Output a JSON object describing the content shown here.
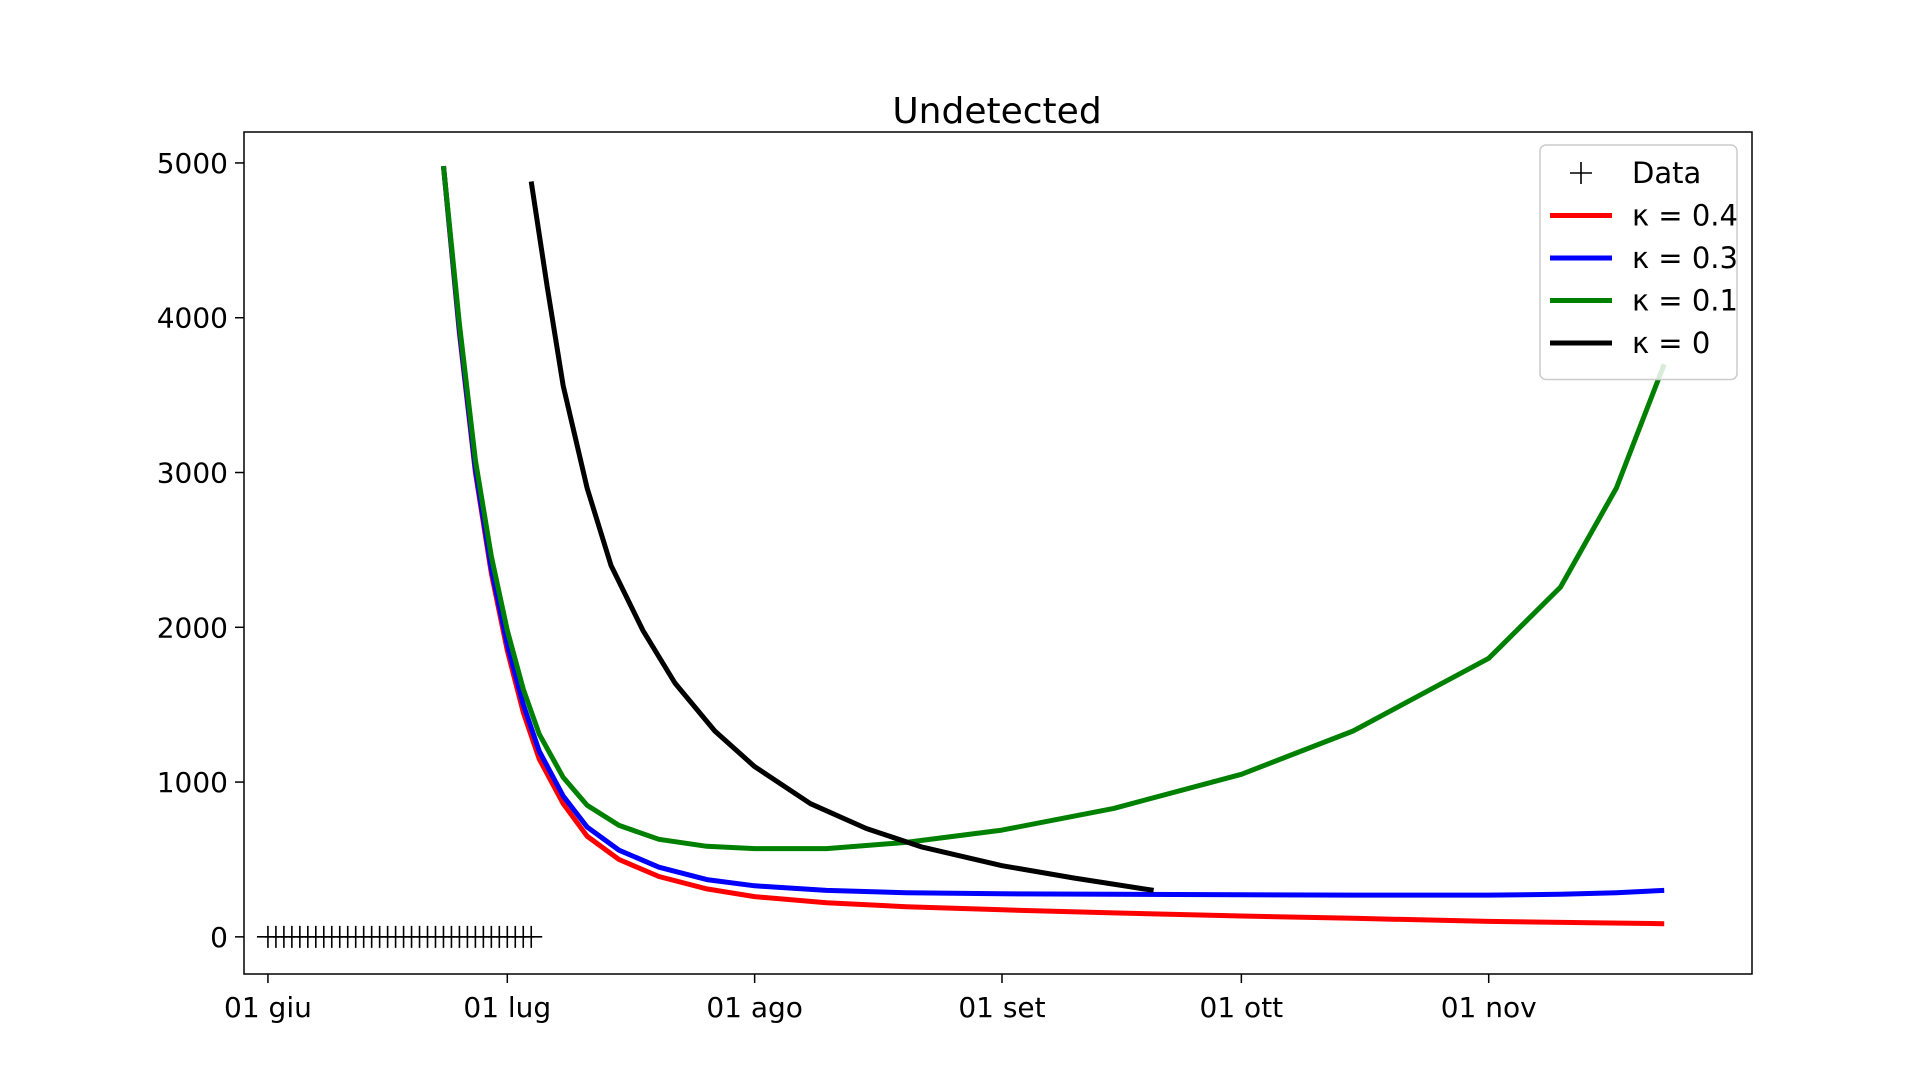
{
  "chart_data": {
    "type": "line",
    "title": "Undetected",
    "xlabel": "",
    "ylabel": "",
    "x_axis": {
      "type": "date",
      "range": [
        "2020-05-29",
        "2020-12-04"
      ],
      "ticks": [
        {
          "date": "2020-06-01",
          "label": "01 giu"
        },
        {
          "date": "2020-07-01",
          "label": "01 lug"
        },
        {
          "date": "2020-08-01",
          "label": "01 ago"
        },
        {
          "date": "2020-09-01",
          "label": "01 set"
        },
        {
          "date": "2020-10-01",
          "label": "01 ott"
        },
        {
          "date": "2020-11-01",
          "label": "01 nov"
        }
      ]
    },
    "y_axis": {
      "range": [
        -240,
        5200
      ],
      "ticks": [
        {
          "value": 0,
          "label": "0"
        },
        {
          "value": 1000,
          "label": "1000"
        },
        {
          "value": 2000,
          "label": "2000"
        },
        {
          "value": 3000,
          "label": "3000"
        },
        {
          "value": 4000,
          "label": "4000"
        },
        {
          "value": 5000,
          "label": "5000"
        }
      ]
    },
    "grid": false,
    "legend": {
      "position": "top-right",
      "entries": [
        {
          "label": "Data",
          "series": "data"
        },
        {
          "label": "κ = 0.4",
          "series": "kappa-0.4"
        },
        {
          "label": "κ = 0.3",
          "series": "kappa-0.3"
        },
        {
          "label": "κ = 0.1",
          "series": "kappa-0.1"
        },
        {
          "label": "κ = 0",
          "series": "kappa-0"
        }
      ]
    },
    "series": [
      {
        "id": "data",
        "name": "Data",
        "style": "marker-plus",
        "color": "#000000",
        "points": [
          {
            "x": "2020-06-01",
            "y": 0
          },
          {
            "x": "2020-06-02",
            "y": 0
          },
          {
            "x": "2020-06-03",
            "y": 0
          },
          {
            "x": "2020-06-04",
            "y": 0
          },
          {
            "x": "2020-06-05",
            "y": 0
          },
          {
            "x": "2020-06-06",
            "y": 0
          },
          {
            "x": "2020-06-07",
            "y": 0
          },
          {
            "x": "2020-06-08",
            "y": 0
          },
          {
            "x": "2020-06-09",
            "y": 0
          },
          {
            "x": "2020-06-10",
            "y": 0
          },
          {
            "x": "2020-06-11",
            "y": 0
          },
          {
            "x": "2020-06-12",
            "y": 0
          },
          {
            "x": "2020-06-13",
            "y": 0
          },
          {
            "x": "2020-06-14",
            "y": 0
          },
          {
            "x": "2020-06-15",
            "y": 0
          },
          {
            "x": "2020-06-16",
            "y": 0
          },
          {
            "x": "2020-06-17",
            "y": 0
          },
          {
            "x": "2020-06-18",
            "y": 0
          },
          {
            "x": "2020-06-19",
            "y": 0
          },
          {
            "x": "2020-06-20",
            "y": 0
          },
          {
            "x": "2020-06-21",
            "y": 0
          },
          {
            "x": "2020-06-22",
            "y": 0
          },
          {
            "x": "2020-06-23",
            "y": 0
          },
          {
            "x": "2020-06-24",
            "y": 0
          },
          {
            "x": "2020-06-25",
            "y": 0
          },
          {
            "x": "2020-06-26",
            "y": 0
          },
          {
            "x": "2020-06-27",
            "y": 0
          },
          {
            "x": "2020-06-28",
            "y": 0
          },
          {
            "x": "2020-06-29",
            "y": 0
          },
          {
            "x": "2020-06-30",
            "y": 0
          },
          {
            "x": "2020-07-01",
            "y": 0
          },
          {
            "x": "2020-07-02",
            "y": 0
          },
          {
            "x": "2020-07-03",
            "y": 0
          },
          {
            "x": "2020-07-04",
            "y": 0
          }
        ]
      },
      {
        "id": "kappa-0.4",
        "name": "κ = 0.4",
        "style": "line",
        "color": "#ff0000",
        "points": [
          {
            "x": "2020-06-23",
            "y": 4980
          },
          {
            "x": "2020-06-25",
            "y": 3900
          },
          {
            "x": "2020-06-27",
            "y": 3000
          },
          {
            "x": "2020-06-29",
            "y": 2350
          },
          {
            "x": "2020-07-01",
            "y": 1850
          },
          {
            "x": "2020-07-03",
            "y": 1450
          },
          {
            "x": "2020-07-05",
            "y": 1150
          },
          {
            "x": "2020-07-08",
            "y": 860
          },
          {
            "x": "2020-07-11",
            "y": 650
          },
          {
            "x": "2020-07-15",
            "y": 500
          },
          {
            "x": "2020-07-20",
            "y": 390
          },
          {
            "x": "2020-07-26",
            "y": 310
          },
          {
            "x": "2020-08-01",
            "y": 260
          },
          {
            "x": "2020-08-10",
            "y": 220
          },
          {
            "x": "2020-08-20",
            "y": 195
          },
          {
            "x": "2020-09-01",
            "y": 175
          },
          {
            "x": "2020-09-15",
            "y": 155
          },
          {
            "x": "2020-10-01",
            "y": 135
          },
          {
            "x": "2020-10-15",
            "y": 120
          },
          {
            "x": "2020-11-01",
            "y": 100
          },
          {
            "x": "2020-11-15",
            "y": 90
          },
          {
            "x": "2020-11-23",
            "y": 85
          }
        ]
      },
      {
        "id": "kappa-0.3",
        "name": "κ = 0.3",
        "style": "line",
        "color": "#0000ff",
        "points": [
          {
            "x": "2020-06-23",
            "y": 4980
          },
          {
            "x": "2020-06-25",
            "y": 3920
          },
          {
            "x": "2020-06-27",
            "y": 3020
          },
          {
            "x": "2020-06-29",
            "y": 2380
          },
          {
            "x": "2020-07-01",
            "y": 1890
          },
          {
            "x": "2020-07-03",
            "y": 1500
          },
          {
            "x": "2020-07-05",
            "y": 1200
          },
          {
            "x": "2020-07-08",
            "y": 910
          },
          {
            "x": "2020-07-11",
            "y": 710
          },
          {
            "x": "2020-07-15",
            "y": 560
          },
          {
            "x": "2020-07-20",
            "y": 450
          },
          {
            "x": "2020-07-26",
            "y": 370
          },
          {
            "x": "2020-08-01",
            "y": 330
          },
          {
            "x": "2020-08-10",
            "y": 300
          },
          {
            "x": "2020-08-20",
            "y": 285
          },
          {
            "x": "2020-09-01",
            "y": 278
          },
          {
            "x": "2020-09-15",
            "y": 275
          },
          {
            "x": "2020-10-01",
            "y": 272
          },
          {
            "x": "2020-10-15",
            "y": 270
          },
          {
            "x": "2020-11-01",
            "y": 270
          },
          {
            "x": "2020-11-10",
            "y": 275
          },
          {
            "x": "2020-11-17",
            "y": 285
          },
          {
            "x": "2020-11-23",
            "y": 300
          }
        ]
      },
      {
        "id": "kappa-0.1",
        "name": "κ = 0.1",
        "style": "line",
        "color": "#008000",
        "points": [
          {
            "x": "2020-06-23",
            "y": 4980
          },
          {
            "x": "2020-06-25",
            "y": 3960
          },
          {
            "x": "2020-06-27",
            "y": 3080
          },
          {
            "x": "2020-06-29",
            "y": 2460
          },
          {
            "x": "2020-07-01",
            "y": 1980
          },
          {
            "x": "2020-07-03",
            "y": 1600
          },
          {
            "x": "2020-07-05",
            "y": 1310
          },
          {
            "x": "2020-07-08",
            "y": 1030
          },
          {
            "x": "2020-07-11",
            "y": 850
          },
          {
            "x": "2020-07-15",
            "y": 720
          },
          {
            "x": "2020-07-20",
            "y": 630
          },
          {
            "x": "2020-07-26",
            "y": 585
          },
          {
            "x": "2020-08-01",
            "y": 570
          },
          {
            "x": "2020-08-10",
            "y": 570
          },
          {
            "x": "2020-08-20",
            "y": 610
          },
          {
            "x": "2020-09-01",
            "y": 690
          },
          {
            "x": "2020-09-15",
            "y": 830
          },
          {
            "x": "2020-10-01",
            "y": 1050
          },
          {
            "x": "2020-10-15",
            "y": 1330
          },
          {
            "x": "2020-11-01",
            "y": 1800
          },
          {
            "x": "2020-11-10",
            "y": 2260
          },
          {
            "x": "2020-11-17",
            "y": 2900
          },
          {
            "x": "2020-11-23",
            "y": 3700
          }
        ]
      },
      {
        "id": "kappa-0",
        "name": "κ = 0",
        "style": "line",
        "color": "#000000",
        "points": [
          {
            "x": "2020-07-04",
            "y": 4880
          },
          {
            "x": "2020-07-06",
            "y": 4200
          },
          {
            "x": "2020-07-08",
            "y": 3560
          },
          {
            "x": "2020-07-11",
            "y": 2900
          },
          {
            "x": "2020-07-14",
            "y": 2400
          },
          {
            "x": "2020-07-18",
            "y": 1980
          },
          {
            "x": "2020-07-22",
            "y": 1640
          },
          {
            "x": "2020-07-27",
            "y": 1330
          },
          {
            "x": "2020-08-01",
            "y": 1100
          },
          {
            "x": "2020-08-08",
            "y": 860
          },
          {
            "x": "2020-08-15",
            "y": 700
          },
          {
            "x": "2020-08-22",
            "y": 580
          },
          {
            "x": "2020-09-01",
            "y": 460
          },
          {
            "x": "2020-09-10",
            "y": 380
          },
          {
            "x": "2020-09-20",
            "y": 300
          }
        ]
      }
    ]
  }
}
